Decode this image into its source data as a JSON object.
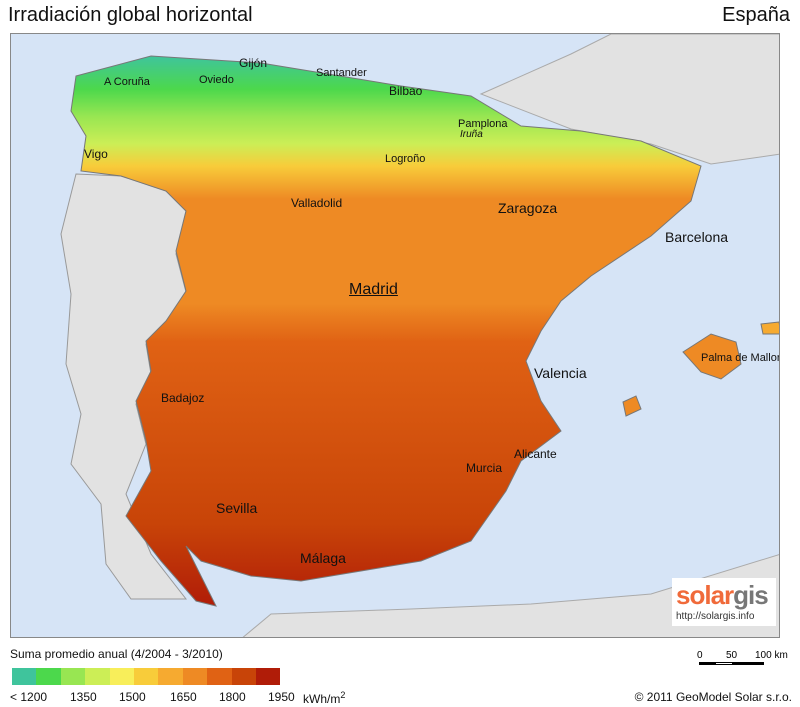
{
  "header": {
    "title": "Irradiación global horizontal",
    "country": "España"
  },
  "map": {
    "colors": {
      "sea": "#d6e4f6",
      "land": "#e2e2e2"
    },
    "cities": [
      {
        "name": "Gijón"
      },
      {
        "name": "Oviedo"
      },
      {
        "name": "Santander"
      },
      {
        "name": "Bilbao"
      },
      {
        "name": "A Coruña"
      },
      {
        "name": "Pamplona"
      },
      {
        "name": "Iruña"
      },
      {
        "name": "Vigo"
      },
      {
        "name": "Logroño"
      },
      {
        "name": "Valladolid"
      },
      {
        "name": "Zaragoza"
      },
      {
        "name": "Barcelona"
      },
      {
        "name": "Madrid"
      },
      {
        "name": "Palma de Mallorca"
      },
      {
        "name": "Valencia"
      },
      {
        "name": "Badajoz"
      },
      {
        "name": "Alicante"
      },
      {
        "name": "Murcia"
      },
      {
        "name": "Sevilla"
      },
      {
        "name": "Málaga"
      }
    ]
  },
  "logo": {
    "brand_a": "solar",
    "brand_b": "gis",
    "url": "http://solargis.info"
  },
  "scale": {
    "labels": [
      "0",
      "50",
      "100 km"
    ]
  },
  "legend": {
    "title": "Suma promedio anual (4/2004 - 3/2010)",
    "colors": [
      "#3fc49c",
      "#4cd84c",
      "#98e652",
      "#ccee56",
      "#f8ee5a",
      "#f8cc3a",
      "#f6aa30",
      "#ee8a24",
      "#e06214",
      "#c84408",
      "#b01c08"
    ],
    "ticks": [
      "< 1200",
      "1350",
      "1500",
      "1650",
      "1800",
      "1950"
    ],
    "unit": "kWh/m",
    "unit_sup": "2"
  },
  "copyright": "© 2011 GeoModel Solar s.r.o."
}
